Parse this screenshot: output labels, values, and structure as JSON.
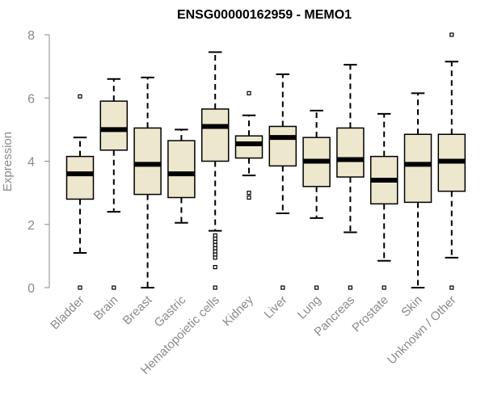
{
  "chart_data": {
    "type": "box",
    "title": "ENSG00000162959 - MEMO1",
    "xlabel": "",
    "ylabel": "Expression",
    "ylim": [
      0,
      8
    ],
    "yticks": [
      "0",
      "2",
      "4",
      "6",
      "8"
    ],
    "grid": false,
    "box_fill": "#ede7cd",
    "categories": [
      "Bladder",
      "Brain",
      "Breast",
      "Gastric",
      "Hematopoietic cells",
      "Kidney",
      "Liver",
      "Lung",
      "Pancreas",
      "Prostate",
      "Skin",
      "Unknown / Other"
    ],
    "boxes": [
      {
        "lower_whisker": 1.1,
        "q1": 2.8,
        "median": 3.6,
        "q3": 4.15,
        "upper_whisker": 4.75,
        "outliers": [
          0.0,
          6.05
        ]
      },
      {
        "lower_whisker": 2.4,
        "q1": 4.35,
        "median": 5.0,
        "q3": 5.9,
        "upper_whisker": 6.6,
        "outliers": [
          0.0
        ]
      },
      {
        "lower_whisker": 0.0,
        "q1": 2.95,
        "median": 3.9,
        "q3": 5.05,
        "upper_whisker": 6.65,
        "outliers": []
      },
      {
        "lower_whisker": 2.05,
        "q1": 2.85,
        "median": 3.6,
        "q3": 4.65,
        "upper_whisker": 5.0,
        "outliers": []
      },
      {
        "lower_whisker": 1.8,
        "q1": 4.0,
        "median": 5.1,
        "q3": 5.65,
        "upper_whisker": 7.45,
        "outliers": [
          0.0,
          0.65,
          0.95,
          1.05,
          1.15,
          1.25,
          1.35,
          1.45,
          1.55,
          1.65
        ]
      },
      {
        "lower_whisker": 3.55,
        "q1": 4.1,
        "median": 4.55,
        "q3": 4.8,
        "upper_whisker": 5.45,
        "outliers": [
          2.85,
          3.0,
          6.15
        ]
      },
      {
        "lower_whisker": 2.35,
        "q1": 3.85,
        "median": 4.75,
        "q3": 5.1,
        "upper_whisker": 6.75,
        "outliers": [
          0.0
        ]
      },
      {
        "lower_whisker": 2.2,
        "q1": 3.2,
        "median": 4.0,
        "q3": 4.75,
        "upper_whisker": 5.6,
        "outliers": [
          0.0
        ]
      },
      {
        "lower_whisker": 1.75,
        "q1": 3.5,
        "median": 4.05,
        "q3": 5.05,
        "upper_whisker": 7.05,
        "outliers": [
          0.0
        ]
      },
      {
        "lower_whisker": 0.85,
        "q1": 2.65,
        "median": 3.4,
        "q3": 4.15,
        "upper_whisker": 5.5,
        "outliers": [
          0.0
        ]
      },
      {
        "lower_whisker": 0.0,
        "q1": 2.7,
        "median": 3.9,
        "q3": 4.85,
        "upper_whisker": 6.15,
        "outliers": []
      },
      {
        "lower_whisker": 0.95,
        "q1": 3.05,
        "median": 4.0,
        "q3": 4.85,
        "upper_whisker": 7.15,
        "outliers": [
          0.0,
          8.0
        ]
      }
    ]
  }
}
